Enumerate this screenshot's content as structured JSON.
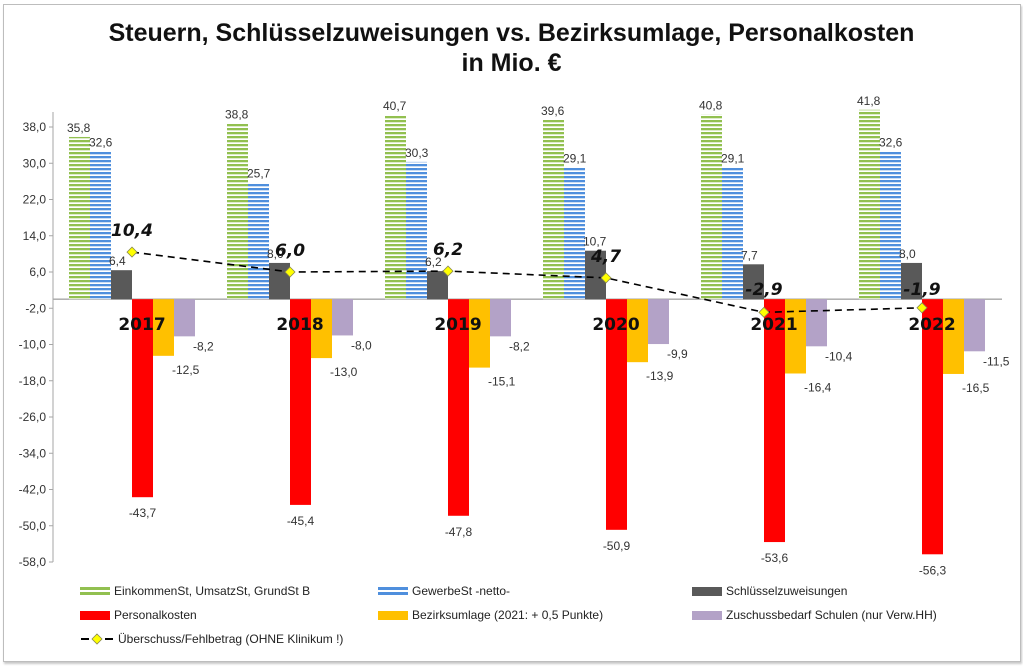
{
  "chart_data": {
    "type": "bar",
    "title": "Steuern, Schlüsselzuweisungen vs. Bezirksumlage, Personalkosten",
    "subtitle": "in Mio. €",
    "xlabel": "",
    "ylabel": "",
    "ylim": [
      -58,
      38
    ],
    "yticks": [
      38,
      30,
      22,
      14,
      6,
      -2,
      -10,
      -18,
      -26,
      -34,
      -42,
      -50,
      -58
    ],
    "ytick_labels": [
      "38,0",
      "30,0",
      "22,0",
      "14,0",
      "6,0",
      "-2,0",
      "-10,0",
      "-18,0",
      "-26,0",
      "-34,0",
      "-42,0",
      "-50,0",
      "-58,0"
    ],
    "grid": false,
    "legend_position": "bottom",
    "categories": [
      "2017",
      "2018",
      "2019",
      "2020",
      "2021",
      "2022"
    ],
    "series": [
      {
        "name": "EinkommenSt, UmsatzSt, GrundSt B",
        "kind": "bar",
        "color": "#92c050",
        "pattern": "horizontal-stripes",
        "values": [
          35.8,
          38.8,
          40.7,
          39.6,
          40.8,
          41.8
        ],
        "labels": [
          "35,8",
          "38,8",
          "40,7",
          "39,6",
          "40,8",
          "41,8"
        ]
      },
      {
        "name": "GewerbeSt -netto-",
        "kind": "bar",
        "color": "#4f8fdd",
        "pattern": "horizontal-stripes",
        "values": [
          32.6,
          25.7,
          30.3,
          29.1,
          29.1,
          32.6
        ],
        "labels": [
          "32,6",
          "25,7",
          "30,3",
          "29,1",
          "29,1",
          "32,6"
        ]
      },
      {
        "name": "Schlüsselzuweisungen",
        "kind": "bar",
        "color": "#595959",
        "values": [
          6.4,
          8.0,
          6.2,
          10.7,
          7.7,
          8.0
        ],
        "labels": [
          "6,4",
          "8,0",
          "6,2",
          "10,7",
          "7,7",
          "8,0"
        ]
      },
      {
        "name": "Personalkosten",
        "kind": "bar",
        "color": "#ff0000",
        "values": [
          -43.7,
          -45.4,
          -47.8,
          -50.9,
          -53.6,
          -56.3
        ],
        "labels": [
          "-43,7",
          "-45,4",
          "-47,8",
          "-50,9",
          "-53,6",
          "-56,3"
        ]
      },
      {
        "name": "Bezirksumlage (2021: + 0,5 Punkte)",
        "kind": "bar",
        "color": "#ffc000",
        "values": [
          -12.5,
          -13.0,
          -15.1,
          -13.9,
          -16.4,
          -16.5
        ],
        "labels": [
          "-12,5",
          "-13,0",
          "-15,1",
          "-13,9",
          "-16,4",
          "-16,5"
        ]
      },
      {
        "name": "Zuschussbedarf Schulen (nur Verw.HH)",
        "kind": "bar",
        "color": "#b3a2c7",
        "values": [
          -8.2,
          -8.0,
          -8.2,
          -9.9,
          -10.4,
          -11.5
        ],
        "labels": [
          "-8,2",
          "-8,0",
          "-8,2",
          "-9,9",
          "-10,4",
          "-11,5"
        ]
      },
      {
        "name": "Überschuss/Fehlbetrag (OHNE Klinikum !)",
        "kind": "line",
        "color": "#000000",
        "marker_color": "#ffff00",
        "line_style": "dashed",
        "marker": "diamond",
        "values": [
          10.4,
          6.0,
          6.2,
          4.7,
          -2.9,
          -1.9
        ],
        "labels": [
          "10,4",
          "6,0",
          "6,2",
          "4,7",
          "-2,9",
          "-1,9"
        ]
      }
    ]
  },
  "legend": {
    "items": [
      "EinkommenSt, UmsatzSt, GrundSt B",
      "GewerbeSt -netto-",
      "Schlüsselzuweisungen",
      "Personalkosten",
      "Bezirksumlage (2021: + 0,5 Punkte)",
      "Zuschussbedarf Schulen (nur Verw.HH)",
      "Überschuss/Fehlbetrag (OHNE Klinikum !)"
    ]
  }
}
